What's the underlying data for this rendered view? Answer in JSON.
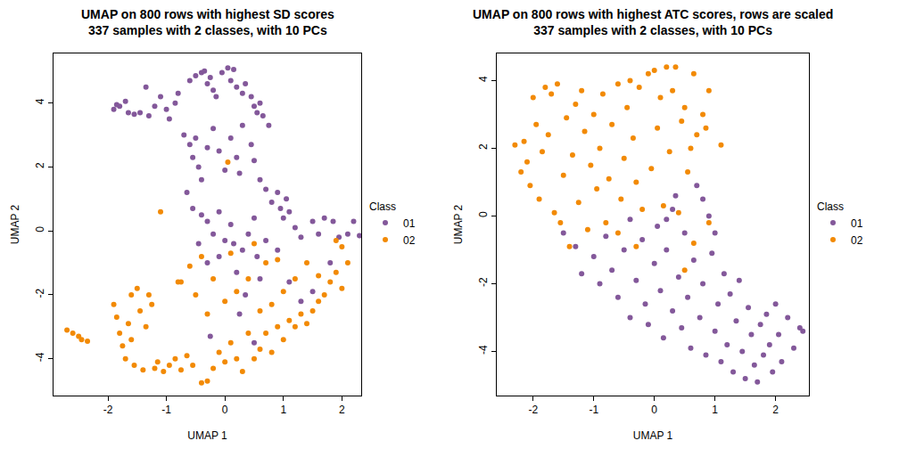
{
  "chart_data": [
    {
      "type": "scatter",
      "title": "UMAP on 800 rows with highest SD scores",
      "subtitle": "337 samples with 2 classes, with 10 PCs",
      "x_label": "UMAP 1",
      "y_label": "UMAP 2",
      "legend_title": "Class",
      "marker": "circle",
      "grid": false,
      "xlim": [
        -2.93,
        2.33
      ],
      "ylim": [
        -5.15,
        5.55
      ],
      "xticks": [
        -2,
        -1,
        0,
        1,
        2
      ],
      "yticks": [
        -4,
        -2,
        0,
        2,
        4
      ],
      "series": [
        {
          "name": "01",
          "color": "#83589A",
          "x": [
            -1.9,
            -1.85,
            -1.8,
            -1.7,
            -1.65,
            -1.55,
            -1.45,
            -1.35,
            -1.3,
            -1.2,
            -1.1,
            -1.0,
            -0.95,
            -0.85,
            -0.8,
            -0.6,
            -0.5,
            -0.4,
            -0.35,
            -0.3,
            -0.25,
            -0.2,
            -0.15,
            -0.05,
            0.05,
            0.15,
            0.1,
            0.2,
            0.3,
            0.35,
            0.45,
            0.5,
            0.55,
            0.65,
            0.6,
            0.75,
            -0.7,
            -0.6,
            -0.5,
            -0.55,
            -0.45,
            -0.4,
            -0.3,
            -0.2,
            -0.1,
            0.0,
            0.1,
            0.2,
            0.25,
            0.3,
            0.45,
            0.5,
            0.6,
            0.7,
            0.8,
            0.9,
            0.95,
            1.0,
            1.05,
            1.1,
            1.2,
            1.3,
            1.5,
            1.6,
            1.7,
            1.85,
            1.95,
            2.1,
            2.3,
            2.2,
            -0.65,
            -0.55,
            -0.4,
            -0.3,
            -0.2,
            -0.1,
            0.0,
            0.1,
            0.15,
            0.3,
            0.4,
            0.5,
            0.55,
            0.7,
            -0.45,
            -0.3,
            -0.1,
            0.2,
            0.35,
            0.6,
            0.9,
            1.1,
            1.3,
            1.5,
            1.8,
            0.25,
            0.5,
            -0.25
          ],
          "y": [
            3.8,
            3.95,
            3.9,
            4.05,
            3.7,
            3.65,
            3.7,
            4.5,
            3.6,
            3.9,
            4.2,
            3.8,
            3.5,
            4.0,
            4.3,
            4.7,
            4.85,
            4.95,
            5.0,
            4.6,
            4.8,
            4.4,
            4.2,
            4.95,
            5.1,
            5.05,
            4.7,
            4.5,
            4.3,
            4.6,
            4.2,
            3.9,
            3.7,
            3.6,
            4.0,
            3.3,
            3.0,
            2.7,
            2.9,
            2.3,
            2.0,
            1.6,
            2.6,
            3.2,
            2.5,
            1.9,
            2.9,
            2.3,
            1.8,
            3.3,
            2.7,
            2.2,
            1.6,
            1.3,
            0.9,
            1.2,
            0.7,
            0.4,
            1.0,
            0.6,
            0.1,
            -0.2,
            0.3,
            -0.1,
            0.4,
            0.3,
            -0.2,
            -0.1,
            -0.15,
            0.3,
            1.2,
            0.7,
            0.5,
            0.3,
            -0.1,
            0.6,
            -0.3,
            0.2,
            -0.4,
            -0.6,
            -0.1,
            0.4,
            -0.8,
            -0.3,
            -0.4,
            -1.0,
            -0.8,
            -1.3,
            -2.0,
            -1.5,
            -0.6,
            -1.6,
            -2.2,
            -1.9,
            -1.0,
            -2.6,
            -3.5,
            -3.3
          ]
        },
        {
          "name": "02",
          "color": "#F28A05",
          "x": [
            -2.7,
            -2.6,
            -2.5,
            -2.45,
            -2.35,
            -1.9,
            -1.85,
            -1.8,
            -1.75,
            -1.7,
            -1.65,
            -1.6,
            -1.55,
            -1.5,
            -1.45,
            -1.4,
            -1.35,
            -1.3,
            -1.25,
            -1.2,
            -1.15,
            -1.05,
            -0.95,
            -0.85,
            -0.75,
            -0.65,
            -0.55,
            -1.6,
            -0.4,
            -0.3,
            -0.2,
            -0.1,
            0.0,
            0.1,
            0.2,
            0.3,
            0.4,
            0.5,
            0.6,
            0.7,
            0.8,
            0.9,
            1.0,
            1.1,
            1.2,
            1.3,
            1.4,
            1.5,
            1.6,
            1.7,
            1.8,
            1.9,
            2.0,
            2.1,
            2.0,
            1.9,
            1.6,
            1.4,
            1.2,
            1.0,
            0.8,
            0.6,
            0.4,
            0.2,
            0.0,
            -0.2,
            -0.4,
            -0.5,
            -0.3,
            0.1,
            0.5,
            0.7,
            0.9,
            -0.6,
            -0.8,
            -1.1,
            0.05,
            -0.75
          ],
          "y": [
            -3.1,
            -3.2,
            -3.3,
            -3.4,
            -3.45,
            -2.3,
            -2.7,
            -3.2,
            -3.6,
            -4.0,
            -2.9,
            -3.4,
            -4.2,
            -1.8,
            -2.5,
            -4.35,
            -3.0,
            -2.0,
            -2.3,
            -4.3,
            -4.1,
            -4.4,
            -4.2,
            -4.0,
            -4.35,
            -3.9,
            -4.2,
            -2.0,
            -4.75,
            -4.7,
            -4.3,
            -3.8,
            -4.1,
            -3.5,
            -4.0,
            -4.4,
            -3.2,
            -4.0,
            -3.7,
            -3.2,
            -3.8,
            -3.0,
            -3.4,
            -2.8,
            -3.0,
            -2.6,
            -2.9,
            -2.5,
            -2.2,
            -2.0,
            -1.6,
            -1.3,
            -1.8,
            -1.0,
            -0.5,
            -0.3,
            -1.4,
            -1.0,
            -1.5,
            -1.9,
            -2.3,
            -2.5,
            -1.5,
            -1.9,
            -2.2,
            -1.5,
            -0.8,
            -2.0,
            -2.6,
            -0.7,
            -0.4,
            -1.0,
            -0.9,
            -1.1,
            -1.6,
            0.6,
            2.15,
            -1.6
          ]
        }
      ]
    },
    {
      "type": "scatter",
      "title": "UMAP on 800 rows with highest ATC scores, rows are scaled",
      "subtitle": "337 samples with 2 classes, with 10 PCs",
      "x_label": "UMAP 1",
      "y_label": "UMAP 2",
      "legend_title": "Class",
      "marker": "circle",
      "grid": false,
      "xlim": [
        -2.6,
        2.55
      ],
      "ylim": [
        -5.3,
        4.8
      ],
      "xticks": [
        -2,
        -1,
        0,
        1,
        2
      ],
      "yticks": [
        -4,
        -2,
        0,
        2,
        4
      ],
      "series": [
        {
          "name": "01",
          "color": "#83589A",
          "x": [
            -1.5,
            -1.3,
            -1.2,
            -1.0,
            -0.9,
            -0.8,
            -0.7,
            -0.6,
            -0.5,
            -0.4,
            -0.3,
            -0.2,
            -0.15,
            -0.1,
            0.0,
            0.05,
            0.1,
            0.15,
            0.2,
            0.3,
            0.35,
            0.4,
            0.45,
            0.5,
            0.55,
            0.6,
            0.65,
            0.7,
            0.75,
            0.8,
            0.85,
            0.9,
            0.95,
            1.0,
            1.05,
            1.1,
            1.15,
            1.2,
            1.25,
            1.3,
            1.35,
            1.4,
            1.45,
            1.5,
            1.55,
            1.6,
            1.65,
            1.7,
            1.75,
            1.8,
            1.85,
            1.9,
            1.95,
            2.0,
            2.05,
            2.1,
            2.2,
            2.3,
            2.4,
            2.45,
            0.3,
            0.2,
            -0.4,
            0.8,
            1.0
          ],
          "y": [
            -0.5,
            -0.9,
            -1.7,
            -1.2,
            -2.0,
            -0.6,
            -1.6,
            -2.4,
            -1.0,
            -3.0,
            -1.9,
            -0.7,
            -2.6,
            -3.2,
            -1.4,
            -0.3,
            -2.2,
            -3.6,
            -1.0,
            -2.8,
            0.6,
            -1.8,
            -3.3,
            -0.5,
            -2.4,
            -3.9,
            -1.3,
            0.9,
            -3.0,
            -2.0,
            -4.1,
            0.0,
            -1.1,
            -3.4,
            -2.6,
            -4.3,
            -1.7,
            -3.8,
            -2.3,
            -4.6,
            -3.1,
            -1.9,
            -4.0,
            -4.8,
            -2.7,
            -3.5,
            -4.4,
            -4.9,
            -3.2,
            -4.1,
            -2.9,
            -3.8,
            -4.6,
            -2.6,
            -3.5,
            -4.3,
            -3.0,
            -3.9,
            -3.3,
            -3.4,
            0.2,
            -0.1,
            -0.1,
            0.5,
            -0.5
          ]
        },
        {
          "name": "02",
          "color": "#F28A05",
          "x": [
            -2.3,
            -2.2,
            -2.15,
            -2.1,
            -2.05,
            -2.0,
            -1.95,
            -1.9,
            -1.85,
            -1.8,
            -1.75,
            -1.7,
            -1.65,
            -1.6,
            -1.55,
            -1.5,
            -1.45,
            -1.4,
            -1.35,
            -1.3,
            -1.25,
            -1.2,
            -1.15,
            -1.1,
            -1.05,
            -1.0,
            -0.95,
            -0.9,
            -0.85,
            -0.8,
            -0.75,
            -0.7,
            -0.6,
            -0.55,
            -0.5,
            -0.45,
            -0.4,
            -0.35,
            -0.3,
            -0.25,
            -0.2,
            -0.1,
            -0.05,
            0.0,
            0.05,
            0.1,
            0.15,
            0.2,
            0.25,
            0.3,
            0.35,
            0.4,
            0.45,
            0.5,
            0.55,
            0.6,
            0.65,
            0.7,
            0.8,
            0.85,
            0.9,
            1.1,
            -0.6,
            -0.3,
            0.65,
            0.9,
            0.5
          ],
          "y": [
            2.1,
            1.3,
            2.2,
            1.6,
            0.9,
            3.5,
            2.7,
            0.5,
            1.9,
            3.8,
            2.4,
            3.6,
            0.1,
            3.9,
            -0.2,
            1.2,
            2.9,
            -0.9,
            1.8,
            3.3,
            0.4,
            3.7,
            2.5,
            -0.4,
            1.5,
            3.0,
            0.8,
            2.0,
            3.6,
            -0.2,
            1.1,
            2.7,
            3.9,
            0.5,
            1.7,
            3.2,
            4.0,
            2.3,
            1.0,
            3.8,
            0.2,
            4.2,
            1.4,
            4.3,
            2.6,
            3.5,
            0.3,
            4.4,
            1.9,
            3.7,
            4.4,
            0.1,
            2.8,
            3.2,
            1.3,
            2.0,
            4.2,
            2.4,
            3.0,
            2.6,
            3.7,
            2.1,
            -0.5,
            -0.9,
            -0.8,
            -0.2,
            -1.6
          ]
        }
      ]
    }
  ]
}
